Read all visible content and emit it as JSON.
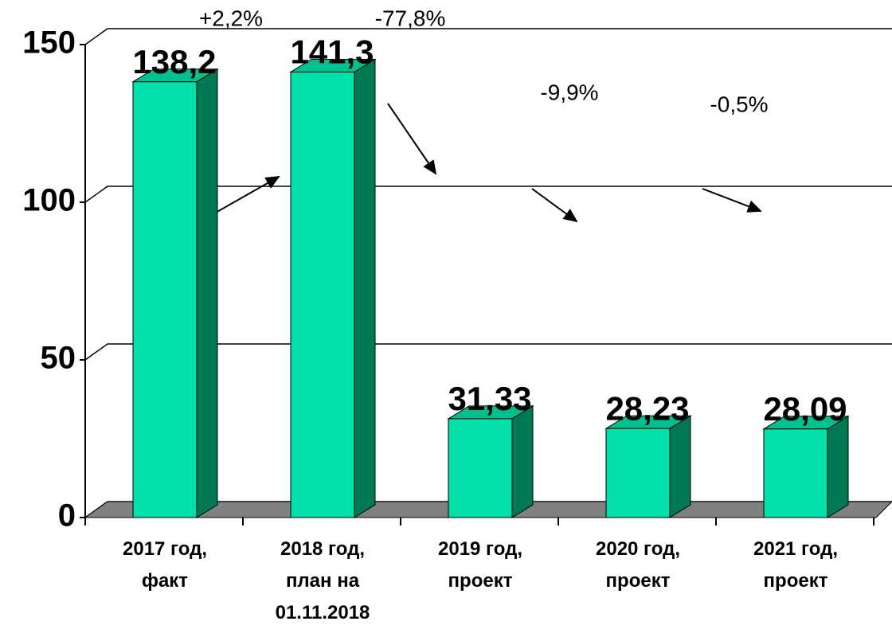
{
  "chart_data": {
    "type": "bar3d",
    "categories": [
      "2017 год,\nфакт",
      "2018 год,\nплан на\n01.11.2018",
      "2019 год,\nпроект",
      "2020 год,\nпроект",
      "2021 год,\nпроект"
    ],
    "values": [
      138.2,
      141.3,
      31.33,
      28.23,
      28.09
    ],
    "value_labels": [
      "138,2",
      "141,3",
      "31,33",
      "28,23",
      "28,09"
    ],
    "color": "#00e0a8",
    "ylim": [
      0,
      150
    ],
    "yticks": [
      0,
      50,
      100,
      150
    ],
    "grid": true,
    "annotations": [
      "+2,2%",
      "-77,8%",
      "-9,9%",
      "-0,5%"
    ]
  }
}
